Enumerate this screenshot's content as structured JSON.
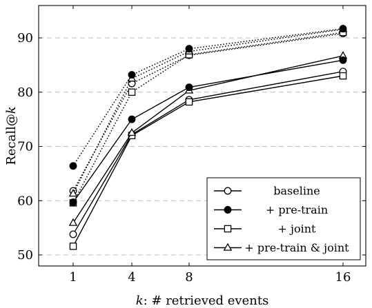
{
  "chart_data": {
    "type": "line",
    "xlabel_var": "k",
    "xlabel_rest": ": # retrieved events",
    "ylabel_main": "Recall@",
    "ylabel_var": "k",
    "x": [
      1,
      4,
      8,
      16
    ],
    "x_tick_labels": [
      "1",
      "4",
      "8",
      "16"
    ],
    "y_ticks": [
      50,
      60,
      70,
      80,
      90
    ],
    "y_tick_labels": [
      "50",
      "60",
      "70",
      "80",
      "90"
    ],
    "ylim": [
      48.5,
      95
    ],
    "grid": "horizontal dashed",
    "legend_position": "bottom-right",
    "series": [
      {
        "name": "baseline",
        "marker": "circle-open",
        "style": "solid",
        "values": [
          53.8,
          72.2,
          78.6,
          83.8
        ]
      },
      {
        "name": "+ pre-train",
        "marker": "circle-filled",
        "style": "solid",
        "values": [
          59.7,
          75.0,
          80.9,
          85.9
        ]
      },
      {
        "name": "+ joint",
        "marker": "square-open",
        "style": "solid",
        "values": [
          51.6,
          72.0,
          78.2,
          83.0
        ]
      },
      {
        "name": "+ pre-train & joint",
        "marker": "triangle-open",
        "style": "solid",
        "values": [
          55.9,
          72.5,
          80.3,
          86.7
        ]
      },
      {
        "name": "",
        "marker": "circle-open",
        "style": "dotted",
        "values": [
          61.8,
          81.6,
          86.8,
          90.8
        ]
      },
      {
        "name": "",
        "marker": "circle-filled",
        "style": "dotted",
        "values": [
          66.4,
          83.2,
          88.0,
          91.7
        ]
      },
      {
        "name": "",
        "marker": "square-open",
        "style": "dotted",
        "values": [
          59.6,
          80.0,
          86.9,
          91.0
        ]
      },
      {
        "name": "",
        "marker": "triangle-open",
        "style": "dotted",
        "values": [
          61.3,
          82.5,
          87.5,
          91.6
        ]
      }
    ]
  }
}
